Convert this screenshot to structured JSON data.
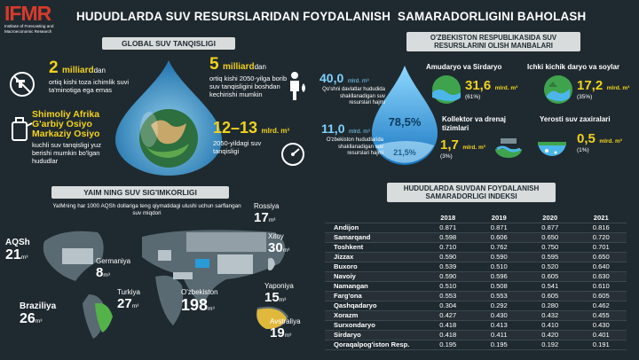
{
  "header": {
    "logo_text": "IFMR",
    "logo_sub": "Institute of Forecasting and Macroeconomic Research",
    "title": "HUDUDLARDA SUV RESURSLARIDAN FOYDALANISH  SAMARADORLIGINI BAHOLASH"
  },
  "global": {
    "section_title": "GLOBAL SUV TANQISLIGI",
    "stat1": {
      "value": "2",
      "unit": "milliard",
      "suffix": "dan",
      "text": "ortiq kishi toza ichimlik suvi ta'minotiga ega emas"
    },
    "stat2": {
      "value": "5",
      "unit": "milliard",
      "suffix": "dan",
      "text": "ortiq kishi 2050-yilga borib suv tanqisligini boshdan kechirishi mumkin"
    },
    "stat3": {
      "line1": "Shimoliy Afrika",
      "line2": "G'arbiy Osiyo",
      "line3": "Markaziy Osiyo",
      "text": "kuchli suv tanqisligi yuz berishi mumkin bo'lgan hududlar"
    },
    "stat4": {
      "value": "12–13",
      "unit": "mlrd. m³",
      "text": "2050-yildagi suv tanqisligi"
    }
  },
  "sources": {
    "section_title": "O'ZBEKISTON RESPUBLIKASIDA SUV RESURSLARINI OLISH MANBALARI",
    "outside_value": "40,0",
    "outside_unit": "mlrd. m³",
    "outside_text": "Qo'shni davlatlar hududida shakllanadigan suv resurslari hajmi",
    "inside_value": "11,0",
    "inside_unit": "mlrd. m³",
    "inside_text": "O'zbekiston hududlarida shakllanadigan suv resurslari hajmi",
    "drop_big_pct": "78,5%",
    "drop_small_pct": "21,5%",
    "items": [
      {
        "title": "Amudaryo va Sirdaryo",
        "value": "31,6",
        "unit": "mlrd. m³",
        "pct": "(61%)"
      },
      {
        "title": "Ichki kichik daryo va soylar",
        "value": "17,2",
        "unit": "mlrd. m³",
        "pct": "(35%)"
      },
      {
        "title": "Kollektor va drenaj tizimlari",
        "value": "1,7",
        "unit": "mlrd. m³",
        "pct": "(3%)"
      },
      {
        "title": "Yerosti suv zaxiralari",
        "value": "0,5",
        "unit": "mlrd. m³",
        "pct": "(1%)"
      }
    ]
  },
  "capacity": {
    "section_title": "YAIM NING SUV SIG'IMKORLIGI",
    "subtitle": "YaIMning har 1000 AQSh dollariga teng qiymatidagi ulushi uchun sarflangan suv miqdori",
    "countries": [
      {
        "name": "AQSh",
        "value": "21",
        "unit": "m³"
      },
      {
        "name": "Germaniya",
        "value": "8",
        "unit": "m³"
      },
      {
        "name": "Braziliya",
        "value": "26",
        "unit": "m³"
      },
      {
        "name": "Turkiya",
        "value": "27",
        "unit": "m³"
      },
      {
        "name": "O'zbekiston",
        "value": "198",
        "unit": "m³"
      },
      {
        "name": "Rossiya",
        "value": "17",
        "unit": "m³"
      },
      {
        "name": "Xitoy",
        "value": "30",
        "unit": "m³"
      },
      {
        "name": "Yaponiya",
        "value": "15",
        "unit": "m³"
      },
      {
        "name": "Avstraliya",
        "value": "19",
        "unit": "m³"
      }
    ]
  },
  "index": {
    "section_title": "HUDUDLARDA SUVDAN FOYDALANISH SAMARADORLIGI INDEKSI",
    "years": [
      "2018",
      "2019",
      "2020",
      "2021"
    ],
    "rows": [
      {
        "region": "Andijon",
        "v": [
          "0.871",
          "0.871",
          "0.877",
          "0.816"
        ]
      },
      {
        "region": "Samarqand",
        "v": [
          "0.598",
          "0.606",
          "0.650",
          "0.720"
        ]
      },
      {
        "region": "Toshkent",
        "v": [
          "0.710",
          "0.762",
          "0.750",
          "0.701"
        ]
      },
      {
        "region": "Jizzax",
        "v": [
          "0.590",
          "0.590",
          "0.595",
          "0.650"
        ]
      },
      {
        "region": "Buxoro",
        "v": [
          "0.539",
          "0.510",
          "0.520",
          "0.640"
        ]
      },
      {
        "region": "Navoiy",
        "v": [
          "0.590",
          "0.596",
          "0.605",
          "0.630"
        ]
      },
      {
        "region": "Namangan",
        "v": [
          "0.510",
          "0.508",
          "0.541",
          "0.610"
        ]
      },
      {
        "region": "Farg'ona",
        "v": [
          "0.553",
          "0.553",
          "0.605",
          "0.605"
        ]
      },
      {
        "region": "Qashqadaryo",
        "v": [
          "0.304",
          "0.292",
          "0.280",
          "0.462"
        ]
      },
      {
        "region": "Xorazm",
        "v": [
          "0.427",
          "0.430",
          "0.432",
          "0.455"
        ]
      },
      {
        "region": "Surxondaryo",
        "v": [
          "0.418",
          "0.413",
          "0.410",
          "0.430"
        ]
      },
      {
        "region": "Sirdaryo",
        "v": [
          "0.418",
          "0.411",
          "0.420",
          "0.401"
        ]
      },
      {
        "region": "Qoraqalpog'iston Resp.",
        "v": [
          "0.195",
          "0.195",
          "0.192",
          "0.191"
        ]
      }
    ]
  },
  "colors": {
    "accent": "#f2d21c",
    "background": "#1f2a30",
    "water": "#3fa6dd"
  }
}
